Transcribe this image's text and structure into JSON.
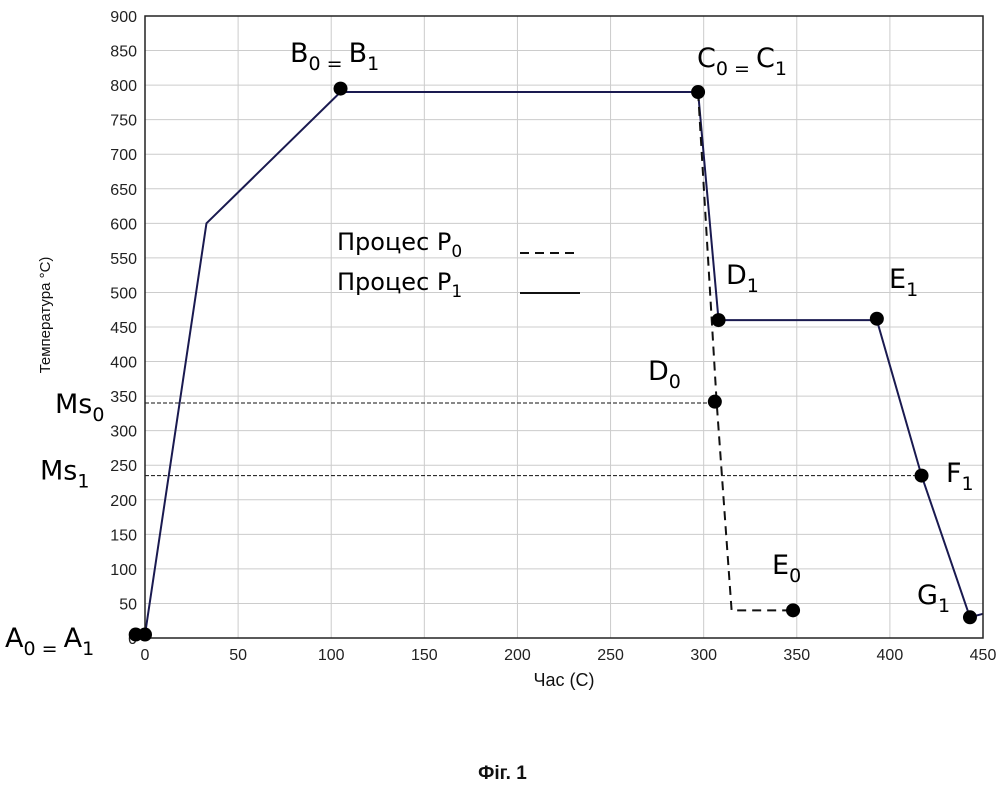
{
  "caption": "Фіг. 1",
  "chart_data": {
    "type": "line",
    "xlabel": "Час (С)",
    "ylabel": "Температура °C)",
    "xlim": [
      0,
      450
    ],
    "ylim": [
      0,
      900
    ],
    "x_ticks": [
      0,
      50,
      100,
      150,
      200,
      250,
      300,
      350,
      400,
      450
    ],
    "y_ticks": [
      0,
      50,
      100,
      150,
      200,
      250,
      300,
      350,
      400,
      450,
      500,
      550,
      600,
      650,
      700,
      750,
      800,
      850,
      900
    ],
    "grid": true,
    "colors": {
      "P1": "#1a1a50",
      "P0": "#111111",
      "ref": "#111111",
      "grid": "#cccccc"
    },
    "series": [
      {
        "name": "Процес P1",
        "style": "solid",
        "x": [
          -5,
          0,
          33,
          105,
          297,
          308,
          393,
          417,
          443,
          450
        ],
        "y": [
          5,
          5,
          600,
          790,
          790,
          460,
          460,
          235,
          30,
          35
        ]
      },
      {
        "name": "Процес P0",
        "style": "dashed",
        "x": [
          297,
          307,
          315,
          348
        ],
        "y": [
          790,
          340,
          40,
          40
        ]
      }
    ],
    "reference_lines": [
      {
        "label": "Ms0",
        "main": "Ms",
        "sub": "0",
        "y": 340
      },
      {
        "label": "Ms1",
        "main": "Ms",
        "sub": "1",
        "y": 235
      }
    ],
    "points": [
      {
        "label": "A0 = A1",
        "x": -5,
        "y": 5,
        "anchor": "left"
      },
      {
        "label": "B0 = B1",
        "x": 105,
        "y": 795,
        "anchor": "top"
      },
      {
        "label": "C0 = C1",
        "x": 297,
        "y": 790,
        "anchor": "top"
      },
      {
        "label": "D1",
        "x": 308,
        "y": 460,
        "anchor": "top"
      },
      {
        "label": "D0",
        "x": 306,
        "y": 342,
        "anchor": "left"
      },
      {
        "label": "E1",
        "x": 393,
        "y": 462,
        "anchor": "top"
      },
      {
        "label": "E0",
        "x": 348,
        "y": 40,
        "anchor": "top"
      },
      {
        "label": "F1",
        "x": 417,
        "y": 235,
        "anchor": "right"
      },
      {
        "label": "G1",
        "x": 443,
        "y": 30,
        "anchor": "left"
      }
    ],
    "legend": {
      "placement": "upper-middle",
      "entries": [
        {
          "main": "Процес ",
          "letter": "P",
          "sub": "0",
          "style": "dashed"
        },
        {
          "main": "Процес ",
          "letter": "P",
          "sub": "1",
          "style": "solid"
        }
      ]
    }
  }
}
